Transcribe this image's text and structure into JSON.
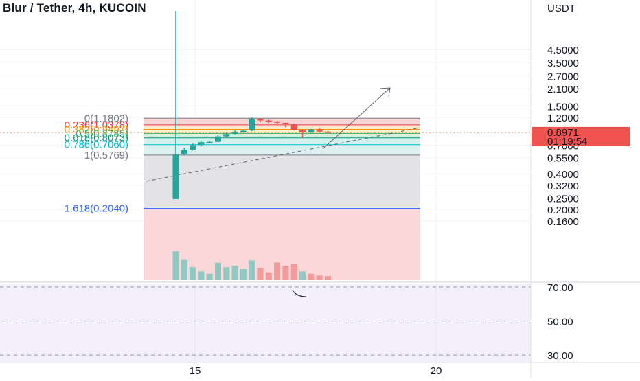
{
  "header": {
    "title": "Blur / Tether, 4h, KUCOIN"
  },
  "price_axis": {
    "currency": "USDT",
    "ticks": [
      "4.5000",
      "3.5000",
      "2.7000",
      "2.1000",
      "1.5000",
      "1.2000",
      "0.7000",
      "0.5500",
      "0.4000",
      "0.3200",
      "0.2500",
      "0.2000",
      "0.1600"
    ],
    "last_price": "0.8971",
    "countdown": "01:19:54",
    "last_price_color": "#f05350"
  },
  "rsi_axis": {
    "ticks": [
      "70.00",
      "50.00",
      "30.00"
    ]
  },
  "time_axis": {
    "ticks": [
      "15",
      "20"
    ]
  },
  "fib": {
    "levels": [
      {
        "label": "0(1.1802)",
        "color": "#787b86"
      },
      {
        "label": "0.236(1.0378)",
        "color": "#f23645"
      },
      {
        "label": "0.382(0.9497)",
        "color": "#ff9800"
      },
      {
        "label": "0.5(0.8785)",
        "color": "#4caf50"
      },
      {
        "label": "0.618(0.8073)",
        "color": "#089981"
      },
      {
        "label": "0.786(0.7060)",
        "color": "#00bcd4"
      },
      {
        "label": "1(0.5769)",
        "color": "#787b86"
      },
      {
        "label": "1.618(0.2040)",
        "color": "#2962ff"
      }
    ]
  },
  "chart_data": {
    "type": "candlestick",
    "title": "Blur / Tether, 4h, KUCOIN",
    "y_scale": "log",
    "ylim": [
      0.15,
      6.0
    ],
    "colors": {
      "up": "#26a69a",
      "down": "#ef5350"
    },
    "candles": [
      {
        "o": 0.245,
        "h": 10.0,
        "l": 0.245,
        "c": 0.585
      },
      {
        "o": 0.59,
        "h": 0.66,
        "l": 0.575,
        "c": 0.64
      },
      {
        "o": 0.64,
        "h": 0.72,
        "l": 0.63,
        "c": 0.7
      },
      {
        "o": 0.7,
        "h": 0.76,
        "l": 0.68,
        "c": 0.74
      },
      {
        "o": 0.74,
        "h": 0.755,
        "l": 0.725,
        "c": 0.745
      },
      {
        "o": 0.745,
        "h": 0.86,
        "l": 0.74,
        "c": 0.83
      },
      {
        "o": 0.83,
        "h": 0.895,
        "l": 0.82,
        "c": 0.87
      },
      {
        "o": 0.87,
        "h": 0.93,
        "l": 0.86,
        "c": 0.91
      },
      {
        "o": 0.91,
        "h": 0.94,
        "l": 0.89,
        "c": 0.925
      },
      {
        "o": 0.93,
        "h": 1.2,
        "l": 0.92,
        "c": 1.16
      },
      {
        "o": 1.17,
        "h": 1.19,
        "l": 1.1,
        "c": 1.13
      },
      {
        "o": 1.13,
        "h": 1.15,
        "l": 1.08,
        "c": 1.11
      },
      {
        "o": 1.11,
        "h": 1.12,
        "l": 1.06,
        "c": 1.08
      },
      {
        "o": 1.08,
        "h": 1.09,
        "l": 0.99,
        "c": 1.05
      },
      {
        "o": 1.05,
        "h": 1.06,
        "l": 0.93,
        "c": 0.94
      },
      {
        "o": 0.94,
        "h": 0.95,
        "l": 0.8,
        "c": 0.9
      },
      {
        "o": 0.9,
        "h": 0.96,
        "l": 0.88,
        "c": 0.95
      },
      {
        "o": 0.95,
        "h": 0.97,
        "l": 0.9,
        "c": 0.91
      },
      {
        "o": 0.91,
        "h": 0.92,
        "l": 0.89,
        "c": 0.8971
      }
    ],
    "volume": [
      {
        "v": 1.0,
        "dir": "up"
      },
      {
        "v": 0.7,
        "dir": "up"
      },
      {
        "v": 0.45,
        "dir": "up"
      },
      {
        "v": 0.3,
        "dir": "up"
      },
      {
        "v": 0.22,
        "dir": "up"
      },
      {
        "v": 0.6,
        "dir": "up"
      },
      {
        "v": 0.45,
        "dir": "up"
      },
      {
        "v": 0.5,
        "dir": "up"
      },
      {
        "v": 0.38,
        "dir": "up"
      },
      {
        "v": 0.68,
        "dir": "up"
      },
      {
        "v": 0.42,
        "dir": "down"
      },
      {
        "v": 0.27,
        "dir": "down"
      },
      {
        "v": 0.61,
        "dir": "down"
      },
      {
        "v": 0.5,
        "dir": "down"
      },
      {
        "v": 0.55,
        "dir": "down"
      },
      {
        "v": 0.3,
        "dir": "up"
      },
      {
        "v": 0.22,
        "dir": "down"
      },
      {
        "v": 0.16,
        "dir": "down"
      },
      {
        "v": 0.14,
        "dir": "down"
      }
    ],
    "rsi_ylim": [
      26,
      72
    ]
  }
}
